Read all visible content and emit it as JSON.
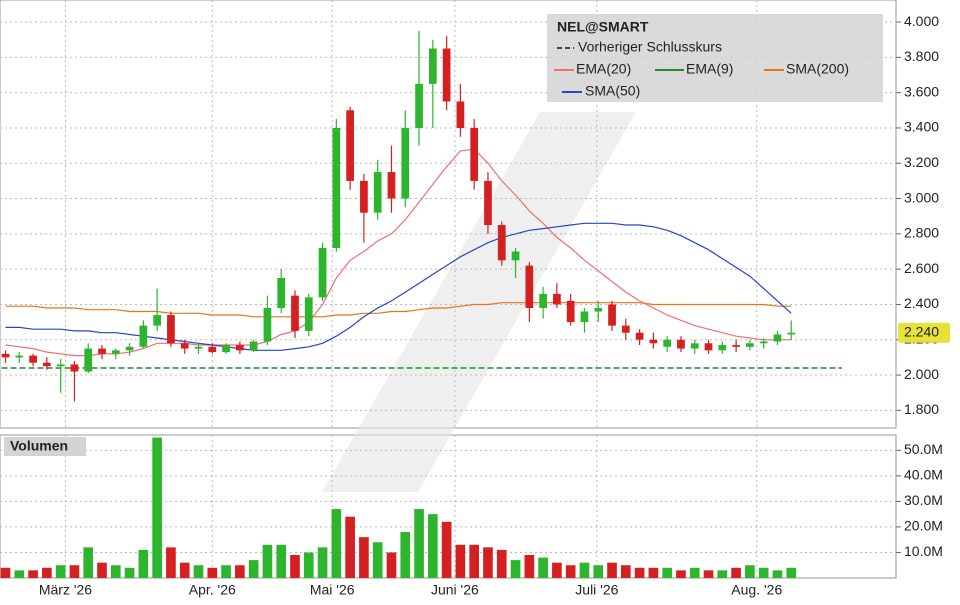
{
  "chart_data": [
    {
      "type": "candlestick",
      "title": "NEL@SMART",
      "xlim": [
        -0.4,
        64.6
      ],
      "xticks": [
        {
          "value": 4.35,
          "label": "März '26"
        },
        {
          "value": 15.0,
          "label": "Apr. '26"
        },
        {
          "value": 23.7,
          "label": "Mai '26"
        },
        {
          "value": 32.6,
          "label": "Juni '26"
        },
        {
          "value": 42.9,
          "label": "Juli '26"
        },
        {
          "value": 54.5,
          "label": "Aug. '26"
        }
      ],
      "ylim": [
        1.7,
        4.125
      ],
      "yticks": [
        {
          "value": 1.8,
          "label": "1.800"
        },
        {
          "value": 2.0,
          "label": "2.000"
        },
        {
          "value": 2.2,
          "label": "2.200"
        },
        {
          "value": 2.4,
          "label": "2.400"
        },
        {
          "value": 2.6,
          "label": "2.600"
        },
        {
          "value": 2.8,
          "label": "2.800"
        },
        {
          "value": 3.0,
          "label": "3.000"
        },
        {
          "value": 3.2,
          "label": "3.200"
        },
        {
          "value": 3.4,
          "label": "3.400"
        },
        {
          "value": 3.6,
          "label": "3.600"
        },
        {
          "value": 3.8,
          "label": "3.800"
        },
        {
          "value": 4.0,
          "label": "4.000"
        }
      ],
      "grid": true,
      "up_color": "#2db52d",
      "down_color": "#d42020",
      "open": [
        2.12,
        2.1,
        2.11,
        2.07,
        2.05,
        2.06,
        2.02,
        2.15,
        2.12,
        2.14,
        2.16,
        2.28,
        2.34,
        2.18,
        2.15,
        2.16,
        2.13,
        2.17,
        2.14,
        2.19,
        2.38,
        2.45,
        2.25,
        2.44,
        2.72,
        3.5,
        3.1,
        2.92,
        3.15,
        3.0,
        3.4,
        3.65,
        3.85,
        3.55,
        3.4,
        3.1,
        2.85,
        2.65,
        2.62,
        2.38,
        2.46,
        2.42,
        2.3,
        2.36,
        2.4,
        2.28,
        2.24,
        2.2,
        2.16,
        2.2,
        2.15,
        2.18,
        2.14,
        2.17,
        2.16,
        2.18,
        2.19,
        2.23
      ],
      "high": [
        2.14,
        2.13,
        2.12,
        2.1,
        2.09,
        2.08,
        2.18,
        2.17,
        2.15,
        2.18,
        2.31,
        2.49,
        2.36,
        2.2,
        2.18,
        2.18,
        2.18,
        2.19,
        2.2,
        2.45,
        2.6,
        2.48,
        2.46,
        2.75,
        3.45,
        3.52,
        3.14,
        3.22,
        3.3,
        3.5,
        3.95,
        3.9,
        3.92,
        3.65,
        3.45,
        3.15,
        2.87,
        2.72,
        2.64,
        2.5,
        2.52,
        2.46,
        2.38,
        2.42,
        2.42,
        2.32,
        2.26,
        2.24,
        2.22,
        2.22,
        2.2,
        2.2,
        2.19,
        2.2,
        2.2,
        2.21,
        2.25,
        2.31
      ],
      "low": [
        2.07,
        2.07,
        2.05,
        2.03,
        1.9,
        1.85,
        2.01,
        2.09,
        2.09,
        2.11,
        2.15,
        2.25,
        2.16,
        2.12,
        2.12,
        2.12,
        2.12,
        2.12,
        2.13,
        2.17,
        2.35,
        2.21,
        2.22,
        2.42,
        2.7,
        3.05,
        2.75,
        2.88,
        2.92,
        2.95,
        3.3,
        3.4,
        3.5,
        3.35,
        3.05,
        2.8,
        2.62,
        2.55,
        2.3,
        2.32,
        2.38,
        2.28,
        2.24,
        2.3,
        2.25,
        2.2,
        2.17,
        2.15,
        2.13,
        2.13,
        2.12,
        2.12,
        2.12,
        2.13,
        2.14,
        2.15,
        2.17,
        2.2
      ],
      "close": [
        2.1,
        2.11,
        2.07,
        2.05,
        2.06,
        2.02,
        2.15,
        2.12,
        2.14,
        2.16,
        2.28,
        2.34,
        2.18,
        2.15,
        2.16,
        2.13,
        2.17,
        2.14,
        2.19,
        2.38,
        2.55,
        2.25,
        2.44,
        2.72,
        3.4,
        3.1,
        2.92,
        3.15,
        3.0,
        3.4,
        3.65,
        3.85,
        3.55,
        3.4,
        3.1,
        2.85,
        2.65,
        2.7,
        2.38,
        2.46,
        2.4,
        2.3,
        2.36,
        2.38,
        2.28,
        2.24,
        2.2,
        2.18,
        2.2,
        2.15,
        2.18,
        2.14,
        2.17,
        2.16,
        2.18,
        2.19,
        2.23,
        2.24
      ],
      "series": [
        {
          "name": "EMA(20)",
          "color": "#f07070",
          "values": [
            2.17,
            2.16,
            2.15,
            2.13,
            2.12,
            2.11,
            2.11,
            2.12,
            2.12,
            2.13,
            2.15,
            2.18,
            2.18,
            2.18,
            2.17,
            2.17,
            2.17,
            2.17,
            2.17,
            2.19,
            2.23,
            2.25,
            2.3,
            2.4,
            2.55,
            2.65,
            2.7,
            2.76,
            2.8,
            2.88,
            2.98,
            3.08,
            3.18,
            3.27,
            3.28,
            3.2,
            3.1,
            3.02,
            2.93,
            2.86,
            2.78,
            2.72,
            2.65,
            2.59,
            2.53,
            2.47,
            2.42,
            2.38,
            2.34,
            2.31,
            2.28,
            2.26,
            2.24,
            2.22,
            2.21,
            2.2,
            2.2,
            2.2
          ]
        },
        {
          "name": "SMA(200)",
          "color": "#e8731a",
          "values": [
            2.39,
            2.39,
            2.39,
            2.38,
            2.38,
            2.38,
            2.37,
            2.37,
            2.37,
            2.36,
            2.36,
            2.36,
            2.35,
            2.35,
            2.35,
            2.34,
            2.34,
            2.34,
            2.33,
            2.33,
            2.33,
            2.33,
            2.33,
            2.33,
            2.34,
            2.34,
            2.35,
            2.35,
            2.36,
            2.36,
            2.37,
            2.38,
            2.38,
            2.39,
            2.4,
            2.4,
            2.41,
            2.41,
            2.41,
            2.41,
            2.41,
            2.41,
            2.41,
            2.41,
            2.41,
            2.41,
            2.41,
            2.4,
            2.4,
            2.4,
            2.4,
            2.4,
            2.4,
            2.4,
            2.4,
            2.4,
            2.39,
            2.39
          ]
        },
        {
          "name": "SMA(50)",
          "color": "#2446c8",
          "values": [
            2.27,
            2.27,
            2.26,
            2.26,
            2.26,
            2.25,
            2.25,
            2.24,
            2.24,
            2.23,
            2.22,
            2.21,
            2.2,
            2.19,
            2.18,
            2.17,
            2.16,
            2.15,
            2.14,
            2.14,
            2.14,
            2.15,
            2.16,
            2.18,
            2.22,
            2.27,
            2.33,
            2.38,
            2.42,
            2.47,
            2.52,
            2.57,
            2.62,
            2.67,
            2.71,
            2.75,
            2.78,
            2.8,
            2.82,
            2.83,
            2.84,
            2.85,
            2.86,
            2.86,
            2.86,
            2.85,
            2.85,
            2.84,
            2.82,
            2.79,
            2.75,
            2.71,
            2.66,
            2.61,
            2.56,
            2.49,
            2.42,
            2.35
          ]
        }
      ],
      "legend_only": [
        {
          "name": "EMA(9)",
          "color": "#2a8a2a"
        }
      ],
      "previous_close": {
        "name": "Vorheriger Schlusskurs",
        "value": 2.04,
        "color": "#55aa55"
      },
      "last_price": {
        "value": 2.24,
        "label": "2.240"
      }
    },
    {
      "type": "bar",
      "title": "Volumen",
      "ylim": [
        0,
        56
      ],
      "yticks": [
        {
          "value": 10,
          "label": "10.0M"
        },
        {
          "value": 20,
          "label": "20.0M"
        },
        {
          "value": 30,
          "label": "30.0M"
        },
        {
          "value": 40,
          "label": "40.0M"
        },
        {
          "value": 50,
          "label": "50.0M"
        }
      ],
      "grid": true,
      "values": [
        4,
        3,
        3,
        4,
        5,
        5,
        12,
        6,
        5,
        4,
        11,
        55,
        12,
        6,
        5,
        4,
        5,
        5,
        7,
        13,
        13,
        9,
        10,
        12,
        27,
        24,
        16,
        14,
        10,
        18,
        27,
        25,
        22,
        13,
        13,
        12,
        11,
        7,
        9,
        8,
        6,
        5,
        6,
        5,
        6,
        5,
        4,
        4,
        4,
        3,
        4,
        3,
        3,
        4,
        5,
        4,
        3,
        4
      ]
    }
  ]
}
